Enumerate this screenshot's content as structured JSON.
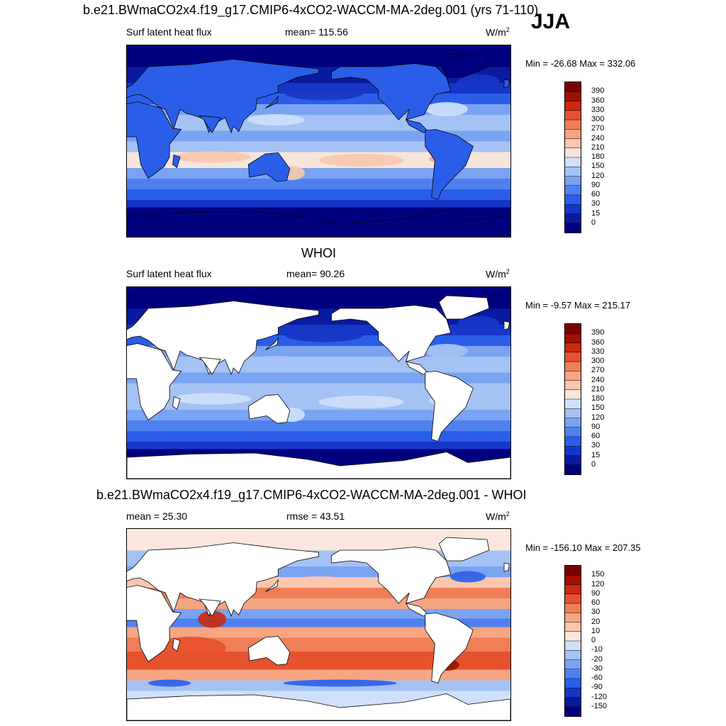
{
  "header": {
    "title": "b.e21.BWmaCO2x4.f19_g17.CMIP6-4xCO2-WACCM-MA-2deg.001 (yrs 71-110)",
    "season": "JJA"
  },
  "panels": [
    {
      "variable": "Surf latent heat flux",
      "stat_text": "mean= 115.56",
      "units": "W/m",
      "units_sup": "2",
      "minmax": "Min = -26.68 Max = 332.06",
      "land_masked": false,
      "palette": "sequential"
    },
    {
      "section_title": "WHOI",
      "variable": "Surf latent heat flux",
      "stat_text": "mean=  90.26",
      "units": "W/m",
      "units_sup": "2",
      "minmax": "Min =  -9.57 Max = 215.17",
      "land_masked": true,
      "palette": "sequential"
    },
    {
      "section_title": "b.e21.BWmaCO2x4.f19_g17.CMIP6-4xCO2-WACCM-MA-2deg.001 - WHOI",
      "variable": "mean =  25.30",
      "stat_text": "rmse =  43.51",
      "units": "W/m",
      "units_sup": "2",
      "minmax": "Min = -156.10 Max = 207.35",
      "land_masked": true,
      "palette": "diverging"
    }
  ],
  "chart_data": [
    {
      "type": "heatmap",
      "title": "b.e21.BWmaCO2x4.f19_g17.CMIP6-4xCO2-WACCM-MA-2deg.001 (yrs 71-110)",
      "variable": "Surf latent heat flux",
      "units": "W/m2",
      "mean": 115.56,
      "min": -26.68,
      "max": 332.06,
      "levels": [
        0,
        15,
        30,
        60,
        90,
        120,
        150,
        180,
        210,
        240,
        270,
        300,
        330,
        360,
        390
      ],
      "colors": [
        "#00007f",
        "#0a1aa0",
        "#1636c8",
        "#2a5ee8",
        "#4f80ef",
        "#7aa3f2",
        "#a5c2f5",
        "#cfe0fb",
        "#f5e6da",
        "#f9c7ad",
        "#f6a583",
        "#f07e57",
        "#e6522e",
        "#c92a10",
        "#a00f00",
        "#7d0000"
      ]
    },
    {
      "type": "heatmap",
      "title": "WHOI",
      "variable": "Surf latent heat flux",
      "units": "W/m2",
      "mean": 90.26,
      "min": -9.57,
      "max": 215.17,
      "levels": [
        0,
        15,
        30,
        60,
        90,
        120,
        150,
        180,
        210,
        240,
        270,
        300,
        330,
        360,
        390
      ],
      "colors": [
        "#00007f",
        "#0a1aa0",
        "#1636c8",
        "#2a5ee8",
        "#4f80ef",
        "#7aa3f2",
        "#a5c2f5",
        "#cfe0fb",
        "#f5e6da",
        "#f9c7ad",
        "#f6a583",
        "#f07e57",
        "#e6522e",
        "#c92a10",
        "#a00f00",
        "#7d0000"
      ]
    },
    {
      "type": "heatmap",
      "title": "b.e21.BWmaCO2x4.f19_g17.CMIP6-4xCO2-WACCM-MA-2deg.001 - WHOI",
      "units": "W/m2",
      "mean": 25.3,
      "rmse": 43.51,
      "min": -156.1,
      "max": 207.35,
      "levels": [
        -150,
        -120,
        -90,
        -60,
        -30,
        -20,
        -10,
        0,
        10,
        20,
        30,
        60,
        90,
        120,
        150
      ],
      "colors": [
        "#00007f",
        "#0a1aa0",
        "#1636c8",
        "#2a5ee8",
        "#4f80ef",
        "#7aa3f2",
        "#a5c2f5",
        "#cfe0fb",
        "#fbe7dd",
        "#f9c7ad",
        "#f6a583",
        "#f07e57",
        "#e6522e",
        "#c92a10",
        "#a00f00",
        "#7d0000"
      ]
    }
  ]
}
